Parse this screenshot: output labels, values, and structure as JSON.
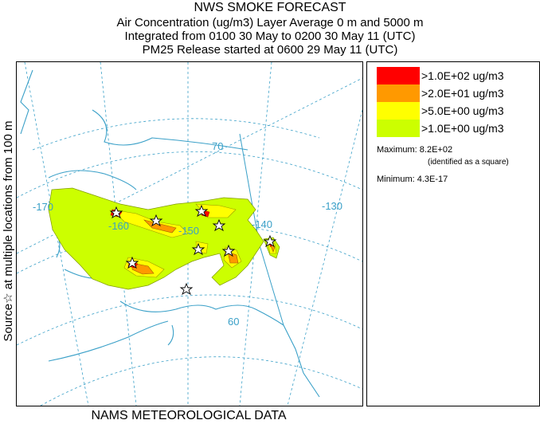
{
  "title": {
    "line1": "NWS SMOKE FORECAST",
    "line2": "Air Concentration (ug/m3) Layer Average    0 m and  5000 m",
    "line3": "Integrated from 0100 30 May to 0200 30 May 11 (UTC)",
    "line4": "PM25 Release started at 0600 29 May 11 (UTC)"
  },
  "side_label": "Source☆   at multiple locations    from   100 m",
  "footer": "NAMS METEOROLOGICAL DATA",
  "legend": {
    "items": [
      {
        "label": ">1.0E+02 ug/m3",
        "color": "#ff0000"
      },
      {
        "label": ">2.0E+01 ug/m3",
        "color": "#ff9900"
      },
      {
        "label": ">5.0E+00 ug/m3",
        "color": "#ffff00"
      },
      {
        "label": ">1.0E+00 ug/m3",
        "color": "#ccff00"
      }
    ],
    "maximum": "Maximum: 8.2E+02",
    "maximum_note": "(identified as a square)",
    "minimum": "Minimum: 4.3E-17"
  },
  "map": {
    "longitude_labels": [
      "-170",
      "-160",
      "-150",
      "-140",
      "-130"
    ],
    "latitude_labels": [
      "70",
      "60"
    ],
    "colors": {
      "coast": "#3aa0c8",
      "grid": "#3aa0c8",
      "level1": "#ccff00",
      "level2": "#ffff00",
      "level3": "#ff9900",
      "level4": "#ff0000"
    }
  }
}
